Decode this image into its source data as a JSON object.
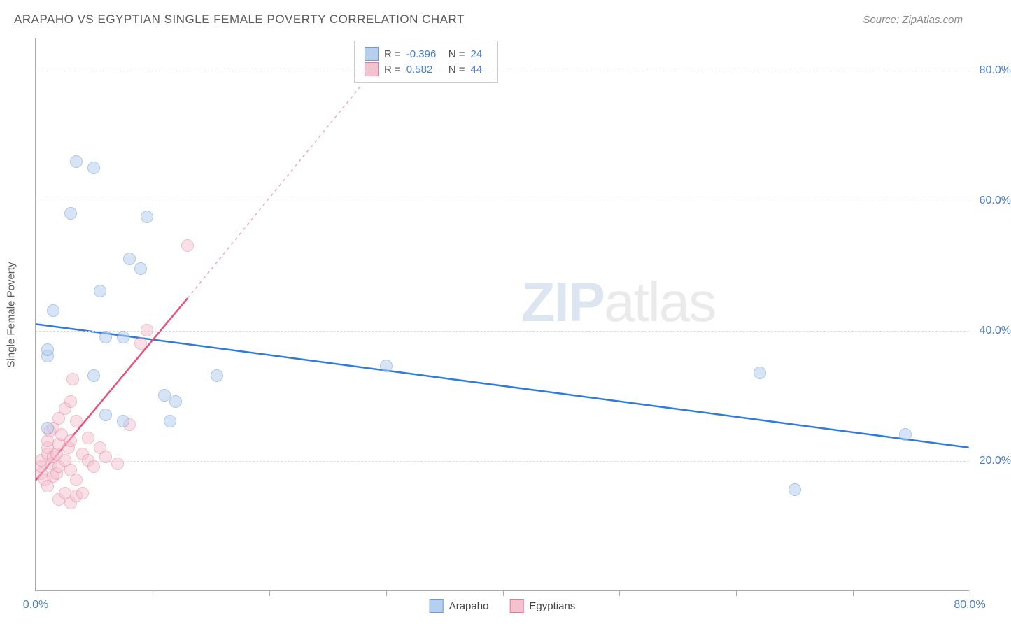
{
  "title": "ARAPAHO VS EGYPTIAN SINGLE FEMALE POVERTY CORRELATION CHART",
  "source": "Source: ZipAtlas.com",
  "ylabel": "Single Female Poverty",
  "watermark_zip": "ZIP",
  "watermark_atlas": "atlas",
  "chart": {
    "type": "scatter",
    "xlim": [
      0,
      80
    ],
    "ylim": [
      0,
      85
    ],
    "ygrid": [
      20,
      40,
      60,
      80
    ],
    "ytick_labels": [
      "20.0%",
      "40.0%",
      "60.0%",
      "80.0%"
    ],
    "xticks": [
      0,
      10,
      20,
      30,
      40,
      50,
      60,
      70,
      80
    ],
    "xtick_labels_shown": {
      "0": "0.0%",
      "80": "80.0%"
    },
    "background": "#ffffff",
    "grid_color": "#dddddd",
    "axis_color": "#aaaaaa",
    "tick_label_color": "#4a7bd0",
    "marker_radius": 9,
    "marker_stroke_width": 1.2
  },
  "series": [
    {
      "name": "Arapaho",
      "fill": "#b7cfee",
      "stroke": "#6a9bd8",
      "fill_opacity": 0.55,
      "line_color": "#2d7bdc",
      "line_width": 2.5,
      "r_value": "-0.396",
      "n_value": "24",
      "trend": {
        "x1": 0,
        "y1": 41,
        "x2": 80,
        "y2": 22
      },
      "trend_dashed_from": null,
      "points": [
        [
          1,
          25
        ],
        [
          1,
          36
        ],
        [
          1,
          37
        ],
        [
          1.5,
          43
        ],
        [
          3,
          58
        ],
        [
          3.5,
          66
        ],
        [
          5,
          33
        ],
        [
          5,
          65
        ],
        [
          5.5,
          46
        ],
        [
          6,
          27
        ],
        [
          6,
          39
        ],
        [
          7.5,
          26
        ],
        [
          7.5,
          39
        ],
        [
          8,
          51
        ],
        [
          9,
          49.5
        ],
        [
          9.5,
          57.5
        ],
        [
          11,
          30
        ],
        [
          11.5,
          26
        ],
        [
          12,
          29
        ],
        [
          15.5,
          33
        ],
        [
          30,
          34.5
        ],
        [
          62,
          33.5
        ],
        [
          65,
          15.5
        ],
        [
          74.5,
          24
        ]
      ]
    },
    {
      "name": "Egyptians",
      "fill": "#f4c2cf",
      "stroke": "#e77a9a",
      "fill_opacity": 0.5,
      "line_color": "#e7507a",
      "line_width": 2.5,
      "r_value": "0.582",
      "n_value": "44",
      "trend": {
        "x1": 0,
        "y1": 17,
        "x2": 13,
        "y2": 45
      },
      "trend_dashed_from": {
        "x1": 13,
        "y1": 45,
        "x2": 28,
        "y2": 78
      },
      "points": [
        [
          0.5,
          18
        ],
        [
          0.5,
          19
        ],
        [
          0.5,
          20
        ],
        [
          0.8,
          17
        ],
        [
          1,
          16
        ],
        [
          1,
          21
        ],
        [
          1,
          22
        ],
        [
          1,
          23
        ],
        [
          1.2,
          24.5
        ],
        [
          1.3,
          19.5
        ],
        [
          1.5,
          17.5
        ],
        [
          1.5,
          20.5
        ],
        [
          1.5,
          25
        ],
        [
          1.8,
          18
        ],
        [
          1.8,
          21
        ],
        [
          2,
          14
        ],
        [
          2,
          19
        ],
        [
          2,
          22.5
        ],
        [
          2,
          26.5
        ],
        [
          2.2,
          24
        ],
        [
          2.5,
          15
        ],
        [
          2.5,
          20
        ],
        [
          2.5,
          28
        ],
        [
          2.8,
          22
        ],
        [
          3,
          13.5
        ],
        [
          3,
          18.5
        ],
        [
          3,
          23
        ],
        [
          3,
          29
        ],
        [
          3.2,
          32.5
        ],
        [
          3.5,
          14.5
        ],
        [
          3.5,
          17
        ],
        [
          3.5,
          26
        ],
        [
          4,
          15
        ],
        [
          4,
          21
        ],
        [
          4.5,
          20
        ],
        [
          4.5,
          23.5
        ],
        [
          5,
          19
        ],
        [
          5.5,
          22
        ],
        [
          6,
          20.5
        ],
        [
          7,
          19.5
        ],
        [
          8,
          25.5
        ],
        [
          9,
          38
        ],
        [
          9.5,
          40
        ],
        [
          13,
          53
        ]
      ]
    }
  ],
  "legend_top": {
    "r_label": "R =",
    "n_label": "N ="
  },
  "legend_bottom": {
    "series1": "Arapaho",
    "series2": "Egyptians"
  }
}
